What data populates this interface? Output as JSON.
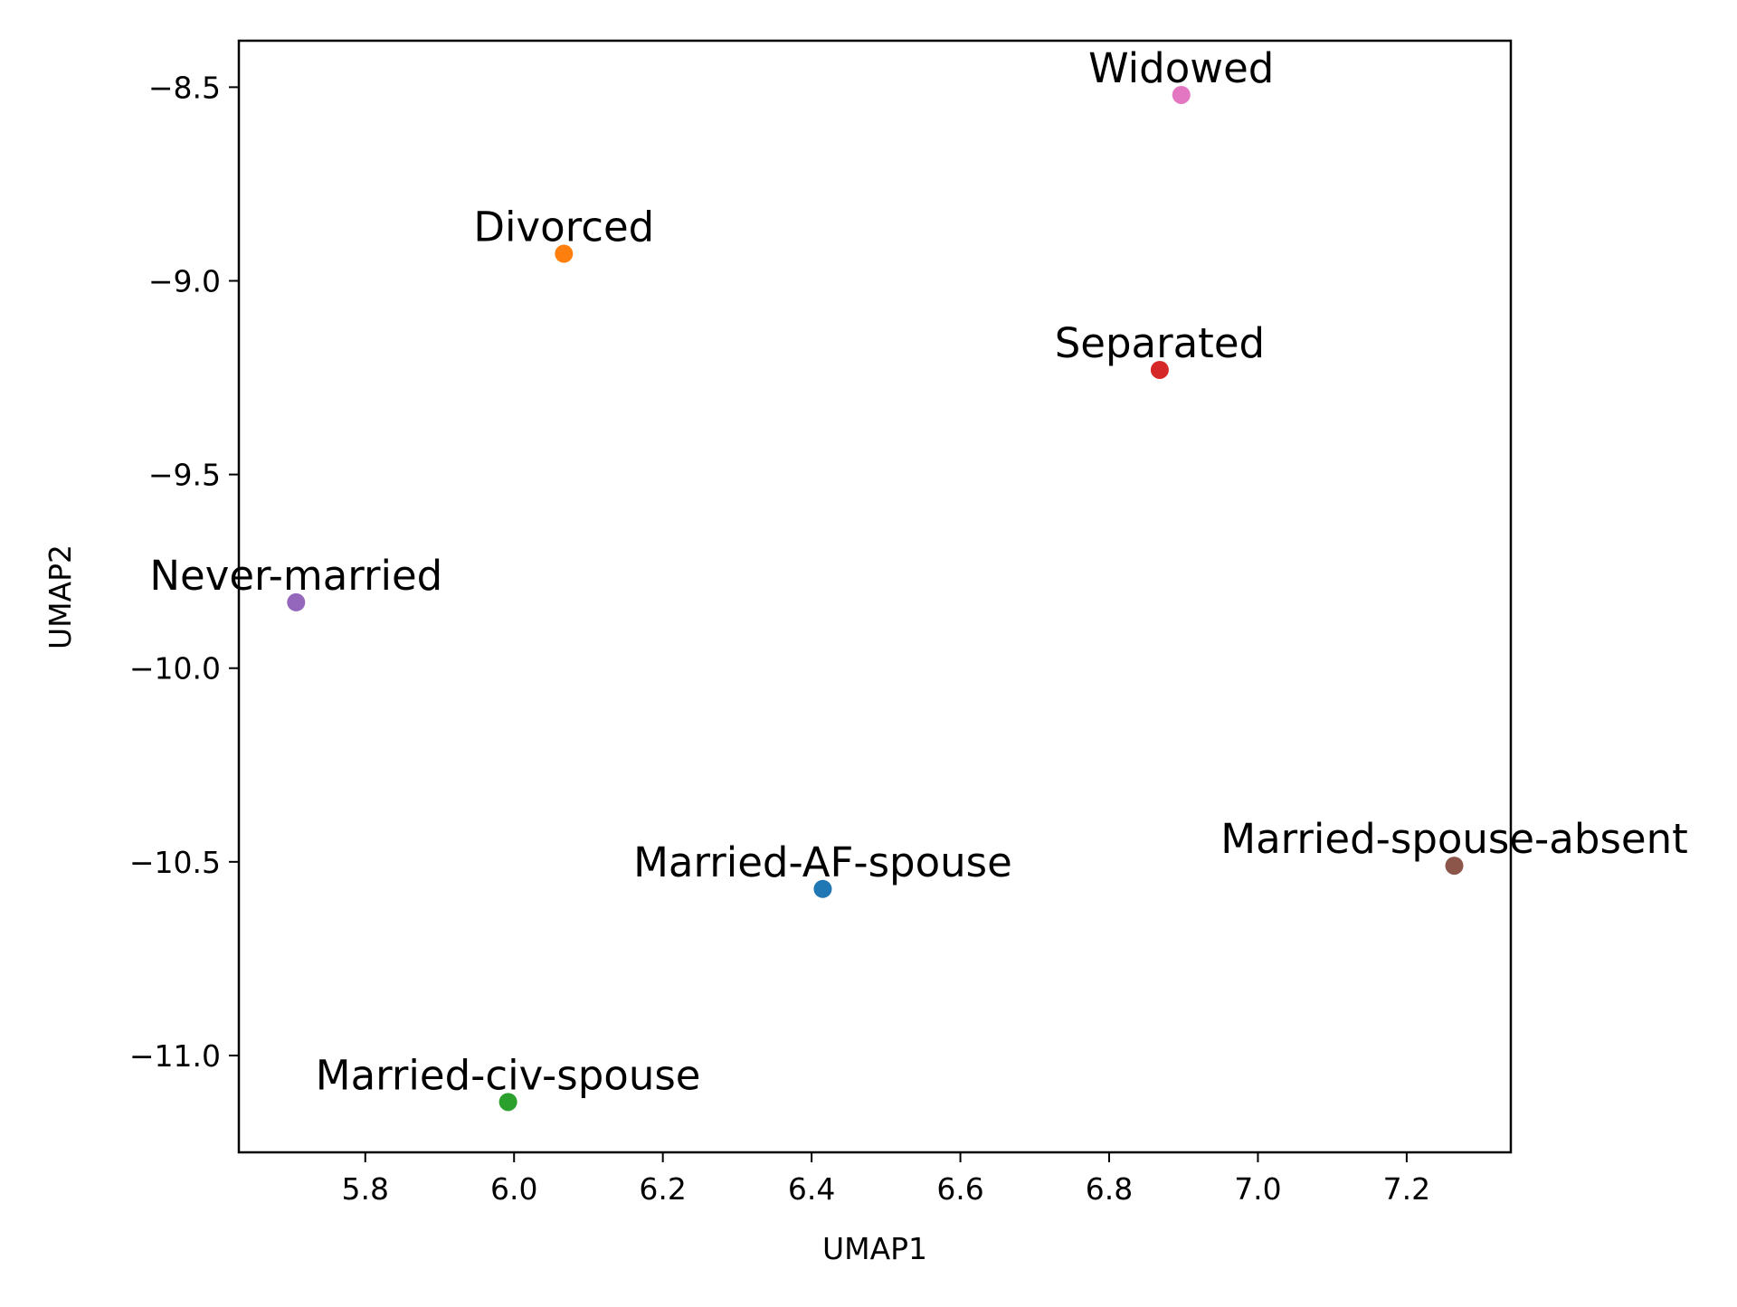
{
  "chart_data": {
    "type": "scatter",
    "title": "",
    "xlabel": "UMAP1",
    "ylabel": "UMAP2",
    "xlim": [
      5.63,
      7.34
    ],
    "ylim": [
      -11.25,
      -8.38
    ],
    "xticks": [
      5.8,
      6.0,
      6.2,
      6.4,
      6.6,
      6.8,
      7.0,
      7.2
    ],
    "yticks": [
      -8.5,
      -9.0,
      -9.5,
      -10.0,
      -10.5,
      -11.0
    ],
    "xtick_labels": [
      "5.8",
      "6.0",
      "6.2",
      "6.4",
      "6.6",
      "6.8",
      "7.0",
      "7.2"
    ],
    "ytick_labels": [
      "−8.5",
      "−9.0",
      "−9.5",
      "−10.0",
      "−10.5",
      "−11.0"
    ],
    "grid": false,
    "legend": "none",
    "points": [
      {
        "label": "Married-AF-spouse",
        "x": 6.415,
        "y": -10.57,
        "color": "#1f77b4"
      },
      {
        "label": "Divorced",
        "x": 6.067,
        "y": -8.93,
        "color": "#ff7f0e"
      },
      {
        "label": "Married-civ-spouse",
        "x": 5.992,
        "y": -11.12,
        "color": "#2ca02c"
      },
      {
        "label": "Separated",
        "x": 6.868,
        "y": -9.23,
        "color": "#d62728"
      },
      {
        "label": "Never-married",
        "x": 5.707,
        "y": -9.83,
        "color": "#9467bd"
      },
      {
        "label": "Married-spouse-absent",
        "x": 7.264,
        "y": -10.51,
        "color": "#8c564b"
      },
      {
        "label": "Widowed",
        "x": 6.897,
        "y": -8.52,
        "color": "#e377c2"
      }
    ]
  }
}
